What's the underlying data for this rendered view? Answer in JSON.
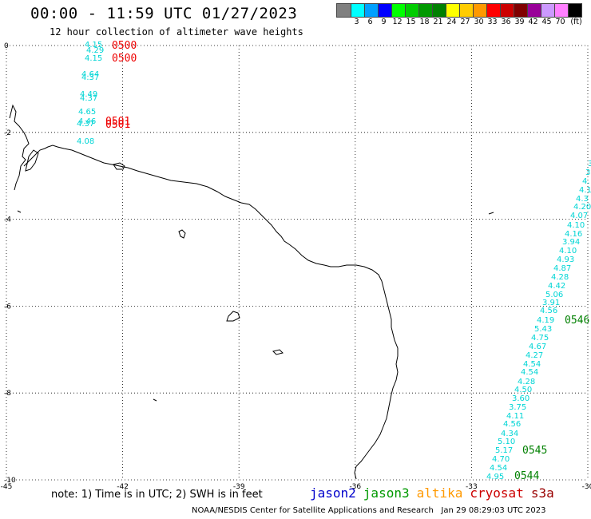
{
  "header": {
    "title": "00:00 - 11:59 UTC 01/27/2023",
    "subtitle": "12 hour collection of altimeter wave heights"
  },
  "colorbar": {
    "unit": "(ft)",
    "swatches": [
      {
        "color": "#808080",
        "label": ""
      },
      {
        "color": "#00ffff",
        "label": "3"
      },
      {
        "color": "#00a0ff",
        "label": "6"
      },
      {
        "color": "#0000ff",
        "label": "9"
      },
      {
        "color": "#00ff00",
        "label": "12"
      },
      {
        "color": "#00cc00",
        "label": "15"
      },
      {
        "color": "#009900",
        "label": "18"
      },
      {
        "color": "#008000",
        "label": "21"
      },
      {
        "color": "#ffff00",
        "label": "24"
      },
      {
        "color": "#ffcc00",
        "label": "27"
      },
      {
        "color": "#ff9900",
        "label": "30"
      },
      {
        "color": "#ff0000",
        "label": "33"
      },
      {
        "color": "#cc0000",
        "label": "36"
      },
      {
        "color": "#800000",
        "label": "39"
      },
      {
        "color": "#990099",
        "label": "42"
      },
      {
        "color": "#cc99ff",
        "label": "45"
      },
      {
        "color": "#ff80ff",
        "label": "70"
      },
      {
        "color": "#000000",
        "label": ""
      }
    ]
  },
  "axes": {
    "x_ticks": [
      "-45",
      "-42",
      "-39",
      "-36",
      "-33",
      "-30"
    ],
    "y_ticks": [
      "0",
      "-2",
      "-4",
      "-6",
      "-8",
      "-10"
    ]
  },
  "map_labels": {
    "west_track_obs": [
      "4.15",
      "4.29",
      "4.15",
      "4.64",
      "4.37",
      "4.49",
      "4.37",
      "4.65",
      "4.46",
      "4.37",
      "4.08"
    ],
    "west_track_times": [
      "0500",
      "0500",
      "0501",
      "0501"
    ],
    "east_track_obs": [
      "3",
      "3",
      "4.",
      "4.1",
      "4.3",
      "4.20",
      "4.07",
      "4.10",
      "4.16",
      "3.94",
      "4.10",
      "4.93",
      "4.87",
      "4.28",
      "4.42",
      "5.06",
      "3.91",
      "4.56",
      "4.19",
      "5.43",
      "4.75",
      "4.67",
      "4.27",
      "4.54",
      "4.54",
      "4.28",
      "4.50",
      "3.60",
      "3.75",
      "4.11",
      "4.56",
      "4.34",
      "5.10",
      "5.17",
      "4.70",
      "4.54",
      "4.95"
    ],
    "east_track_times": [
      "0546",
      "0545",
      "0544"
    ]
  },
  "footer": {
    "note": "note: 1) Time is in UTC; 2) SWH is in feet",
    "legend": [
      {
        "name": "jason2",
        "color": "#0000cc"
      },
      {
        "name": "jason3",
        "color": "#009900"
      },
      {
        "name": "altika",
        "color": "#ff9900"
      },
      {
        "name": "cryosat",
        "color": "#cc0000"
      },
      {
        "name": "s3a",
        "color": "#990000"
      }
    ],
    "credit": "NOAA/NESDIS Center for Satellite Applications and Research   Jan 29 08:29:03 UTC 2023"
  },
  "colors": {
    "obs_text": "#00d5d5",
    "time_west": "#ee0000",
    "time_east": "#008000",
    "coastline": "#000000"
  }
}
